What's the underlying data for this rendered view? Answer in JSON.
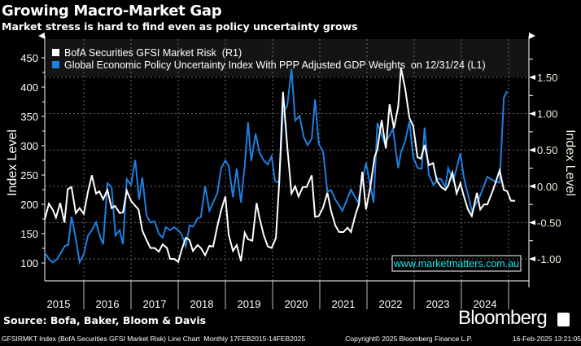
{
  "header": {
    "title": "Growing Macro-Market Gap",
    "subtitle": "Market stress is hard to find even as policy uncertainty grows"
  },
  "source": "Source: Bofa, Baker, Bloom & Davis",
  "brand": "Bloomberg",
  "footer": {
    "description": "GFSIRMKT Index (BofA Securities GFSI Market Risk) Line Chart  Monthly 17FEB2015-14FEB2025",
    "copyright": "Copyright© 2025 Bloomberg Finance L.P.",
    "timestamp": "16-Feb-2025 13:21:05"
  },
  "watermark": "www.marketmatters.com.au",
  "colors": {
    "background": "#000000",
    "legend_bg": "#141414",
    "gfsi": "#ffffff",
    "epu": "#1f7fe0",
    "watermark": "#1de9f0"
  },
  "chart_data": {
    "type": "line",
    "title": "Growing Macro-Market Gap",
    "x_tick_labels": [
      "2015",
      "2016",
      "2017",
      "2018",
      "2019",
      "2020",
      "2021",
      "2022",
      "2023",
      "2024"
    ],
    "xlim": [
      2015,
      2025.2
    ],
    "left_axis": {
      "label": "Index Level",
      "ticks": [
        "100",
        "150",
        "200",
        "250",
        "300",
        "350",
        "400",
        "450"
      ],
      "ylim": [
        65,
        485
      ]
    },
    "right_axis": {
      "label": "Index Level",
      "ticks": [
        "-1.00",
        "-0.50",
        "0.00",
        "0.50",
        "1.00",
        "1.50"
      ],
      "ylim": [
        -1.3,
        1.9
      ]
    },
    "grid": true,
    "legend_placement": "top-left",
    "series": [
      {
        "name": "BofA Securities GFSI Market Risk  (R1)",
        "axis": "right",
        "color": "#ffffff",
        "x": [
          2015.17,
          2015.26,
          2015.34,
          2015.41,
          2015.5,
          2015.59,
          2015.66,
          2015.74,
          2015.83,
          2015.91,
          2016.0,
          2016.09,
          2016.17,
          2016.26,
          2016.33,
          2016.41,
          2016.5,
          2016.59,
          2016.66,
          2016.76,
          2016.83,
          2016.91,
          2017.0,
          2017.09,
          2017.16,
          2017.24,
          2017.33,
          2017.41,
          2017.5,
          2017.59,
          2017.67,
          2017.76,
          2017.83,
          2017.91,
          2018.0,
          2018.07,
          2018.16,
          2018.24,
          2018.31,
          2018.41,
          2018.48,
          2018.57,
          2018.66,
          2018.74,
          2018.83,
          2018.91,
          2019.0,
          2019.07,
          2019.16,
          2019.24,
          2019.33,
          2019.41,
          2019.48,
          2019.57,
          2019.66,
          2019.72,
          2019.81,
          2019.9,
          2019.98,
          2020.07,
          2020.14,
          2020.22,
          2020.31,
          2020.4,
          2020.48,
          2020.55,
          2020.64,
          2020.72,
          2020.83,
          2020.9,
          2020.98,
          2021.07,
          2021.16,
          2021.24,
          2021.33,
          2021.41,
          2021.5,
          2021.59,
          2021.66,
          2021.76,
          2021.83,
          2021.9,
          2021.98,
          2022.07,
          2022.16,
          2022.22,
          2022.31,
          2022.4,
          2022.48,
          2022.57,
          2022.66,
          2022.72,
          2022.81,
          2022.9,
          2022.98,
          2023.07,
          2023.14,
          2023.22,
          2023.31,
          2023.4,
          2023.48,
          2023.57,
          2023.66,
          2023.72,
          2023.81,
          2023.9,
          2023.98,
          2024.05,
          2024.14,
          2024.22,
          2024.33,
          2024.4,
          2024.48,
          2024.55,
          2024.66,
          2024.74,
          2024.81,
          2024.9,
          2024.97,
          2025.05,
          2025.14
        ],
        "values": [
          -0.46,
          -0.24,
          -0.32,
          -0.43,
          -0.23,
          -0.5,
          -0.04,
          -0.01,
          -0.37,
          -0.3,
          -0.38,
          -0.07,
          0.15,
          -0.1,
          -0.07,
          -0.18,
          -0.05,
          -0.3,
          -0.27,
          -0.37,
          -0.36,
          -0.06,
          -0.2,
          -0.27,
          -0.32,
          -0.61,
          -0.74,
          -0.85,
          -0.85,
          -0.9,
          -0.8,
          -0.85,
          -1.0,
          -1.0,
          -1.04,
          -0.88,
          -0.71,
          -0.74,
          -0.89,
          -0.81,
          -0.85,
          -0.95,
          -0.82,
          -0.83,
          -0.55,
          -0.33,
          -0.14,
          -0.67,
          -0.89,
          -0.81,
          -1.03,
          -0.64,
          -0.73,
          -0.75,
          -0.23,
          -0.43,
          -0.67,
          -0.83,
          -0.85,
          -0.71,
          0.04,
          1.3,
          0.55,
          -0.1,
          0.0,
          -0.14,
          -0.01,
          -0.01,
          0.15,
          -0.42,
          -0.41,
          -0.29,
          -0.09,
          -0.34,
          -0.54,
          -0.63,
          -0.63,
          -0.57,
          -0.63,
          -0.38,
          -0.25,
          0.2,
          -0.32,
          -0.01,
          0.4,
          0.51,
          0.91,
          0.52,
          1.13,
          0.8,
          1.09,
          1.63,
          1.34,
          0.94,
          0.83,
          0.4,
          0.38,
          0.57,
          0.29,
          0.32,
          0.08,
          -0.01,
          -0.05,
          0.01,
          0.19,
          -0.1,
          0.04,
          -0.13,
          -0.32,
          -0.41,
          -0.09,
          -0.32,
          -0.25,
          -0.25,
          -0.07,
          0.08,
          0.22,
          -0.05,
          -0.07,
          -0.2,
          -0.2
        ]
      },
      {
        "name": "Global Economic Policy Uncertainty Index With PPP Adjusted GDP Weights  on 12/31/24 (L1)",
        "axis": "left",
        "color": "#1f7fe0",
        "x": [
          2015.17,
          2015.26,
          2015.34,
          2015.43,
          2015.6,
          2015.67,
          2015.74,
          2015.83,
          2015.91,
          2016.0,
          2016.09,
          2016.17,
          2016.26,
          2016.34,
          2016.41,
          2016.5,
          2016.59,
          2016.67,
          2016.76,
          2016.83,
          2016.91,
          2017.0,
          2017.09,
          2017.17,
          2017.24,
          2017.33,
          2017.41,
          2017.5,
          2017.59,
          2017.67,
          2017.74,
          2017.83,
          2017.91,
          2018.0,
          2018.07,
          2018.16,
          2018.24,
          2018.31,
          2018.41,
          2018.48,
          2018.57,
          2018.66,
          2018.74,
          2018.83,
          2018.91,
          2019.0,
          2019.07,
          2019.16,
          2019.24,
          2019.33,
          2019.41,
          2019.48,
          2019.55,
          2019.64,
          2019.72,
          2019.81,
          2019.9,
          2019.98,
          2020.05,
          2020.14,
          2020.22,
          2020.31,
          2020.4,
          2020.48,
          2020.57,
          2020.66,
          2020.74,
          2020.83,
          2020.9,
          2020.98,
          2021.07,
          2021.16,
          2021.24,
          2021.33,
          2021.48,
          2021.66,
          2021.81,
          2021.98,
          2022.14,
          2022.22,
          2022.38,
          2022.55,
          2022.66,
          2022.72,
          2022.81,
          2022.9,
          2022.98,
          2023.07,
          2023.16,
          2023.22,
          2023.31,
          2023.41,
          2023.5,
          2023.57,
          2023.66,
          2023.72,
          2023.83,
          2023.98,
          2024.05,
          2024.22,
          2024.38,
          2024.55,
          2024.71,
          2024.81,
          2024.9,
          2024.97
        ],
        "values": [
          118,
          107,
          101,
          106,
          129,
          131,
          179,
          142,
          101,
          115,
          147,
          156,
          169,
          146,
          132,
          236,
          229,
          147,
          156,
          132,
          243,
          233,
          276,
          208,
          246,
          181,
          169,
          171,
          150,
          143,
          161,
          156,
          161,
          156,
          149,
          128,
          164,
          162,
          176,
          178,
          231,
          189,
          203,
          219,
          262,
          275,
          265,
          212,
          261,
          203,
          267,
          340,
          274,
          321,
          289,
          275,
          268,
          282,
          240,
          237,
          357,
          368,
          431,
          343,
          351,
          315,
          301,
          312,
          379,
          303,
          290,
          222,
          224,
          208,
          189,
          225,
          203,
          271,
          203,
          339,
          303,
          329,
          262,
          289,
          308,
          342,
          281,
          262,
          261,
          331,
          250,
          233,
          244,
          243,
          229,
          262,
          240,
          287,
          247,
          189,
          211,
          247,
          239,
          237,
          382,
          393
        ]
      }
    ]
  }
}
